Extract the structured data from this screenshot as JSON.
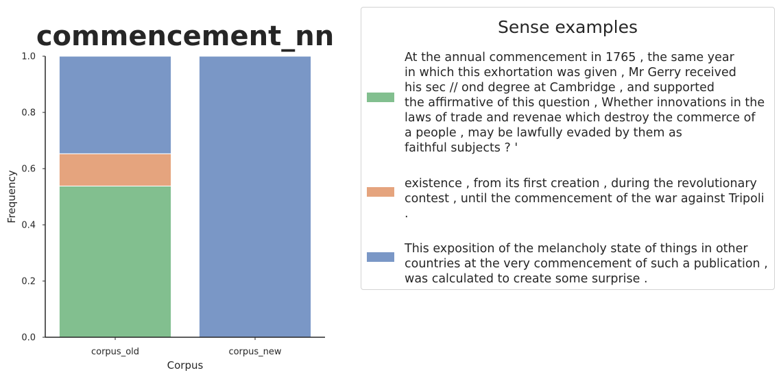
{
  "chart_data": {
    "type": "bar",
    "stacked": true,
    "title": "commencement_nn",
    "xlabel": "Corpus",
    "ylabel": "Frequency",
    "ylim": [
      0,
      1
    ],
    "yticks": [
      "0.0",
      "0.2",
      "0.4",
      "0.6",
      "0.8",
      "1.0"
    ],
    "categories": [
      "corpus_old",
      "corpus_new"
    ],
    "series": [
      {
        "color": "#82bf8f",
        "values": [
          0.538,
          0.0
        ]
      },
      {
        "color": "#e5a47e",
        "values": [
          0.115,
          0.0
        ]
      },
      {
        "color": "#7a97c6",
        "values": [
          0.347,
          1.0
        ]
      }
    ],
    "legend": {
      "title": "Sense examples",
      "placement": "right",
      "entries": [
        {
          "color": "#82bf8f",
          "text": "At the annual commencement in 1765 , the same year\nin which this exhortation was given , Mr Gerry received\nhis sec // ond degree at Cambridge , and supported\nthe affirmative of this question , Whether innovations in the\nlaws of trade and revenae which destroy the commerce of\na people , may be lawfully evaded by them as\nfaithful subjects ? '"
        },
        {
          "color": "#e5a47e",
          "text": "existence , from its first creation , during the revolutionary\ncontest , until the commencement of the war against Tripoli\n."
        },
        {
          "color": "#7a97c6",
          "text": "This exposition of the melancholy state of things in other\ncountries at the very commencement of such a publication ,\nwas calculated to create some surprise ."
        }
      ]
    }
  }
}
